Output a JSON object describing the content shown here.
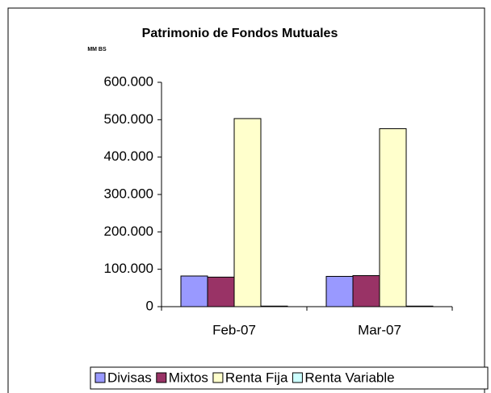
{
  "chart_data": {
    "type": "bar",
    "title": "Patrimonio de Fondos Mutuales",
    "subtitle": "MM BS",
    "categories": [
      "Feb-07",
      "Mar-07"
    ],
    "series": [
      {
        "name": "Divisas",
        "color": "#9999ff",
        "values": [
          82000,
          81000
        ]
      },
      {
        "name": "Mixtos",
        "color": "#993366",
        "values": [
          79000,
          83000
        ]
      },
      {
        "name": "Renta Fija",
        "color": "#ffffcc",
        "values": [
          503000,
          476000
        ]
      },
      {
        "name": "Renta Variable",
        "color": "#ccffff",
        "values": [
          1500,
          1500
        ]
      }
    ],
    "ylim": [
      0,
      600000
    ],
    "yticks": [
      0,
      {
        "value": 100000,
        "label": "100.000"
      },
      {
        "value": 200000,
        "label": "200.000"
      },
      {
        "value": 300000,
        "label": "300.000"
      },
      {
        "value": 400000,
        "label": "400.000"
      },
      {
        "value": 500000,
        "label": "500.000"
      },
      {
        "value": 600000,
        "label": "600.000"
      }
    ],
    "legend": "bottom"
  }
}
